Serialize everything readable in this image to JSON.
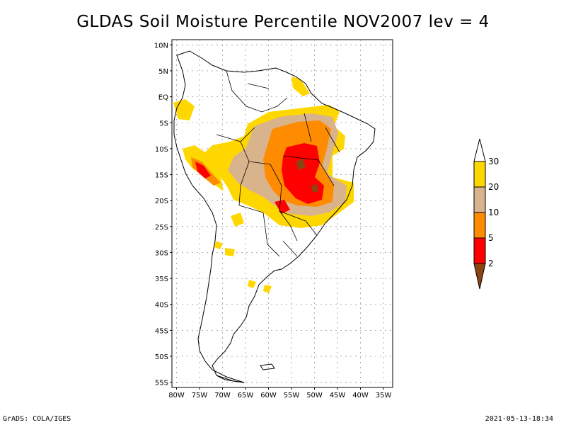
{
  "title": "GLDAS Soil Moisture Percentile NOV2007 lev = 4",
  "footer": {
    "left": "GrADS: COLA/IGES",
    "right": "2021-05-13-18:34"
  },
  "axes": {
    "lat_labels": [
      "10N",
      "5N",
      "EQ",
      "5S",
      "10S",
      "15S",
      "20S",
      "25S",
      "30S",
      "35S",
      "40S",
      "45S",
      "50S",
      "55S"
    ],
    "lon_labels": [
      "80W",
      "75W",
      "70W",
      "65W",
      "60W",
      "55W",
      "50W",
      "45W",
      "40W",
      "35W"
    ]
  },
  "colorbar": {
    "labels": [
      "30",
      "20",
      "10",
      "5",
      "2"
    ],
    "colors": [
      "#ffffff",
      "#ffd700",
      "#d9b38c",
      "#ff8c00",
      "#ff0000",
      "#8b4513"
    ]
  },
  "chart_data": {
    "type": "heatmap",
    "title": "GLDAS Soil Moisture Percentile NOV2007 lev = 4",
    "xlim": [
      -81,
      -33
    ],
    "ylim": [
      -56,
      11
    ],
    "grid": true,
    "legend": "right",
    "levels": [
      2,
      5,
      10,
      20,
      30
    ]
  }
}
